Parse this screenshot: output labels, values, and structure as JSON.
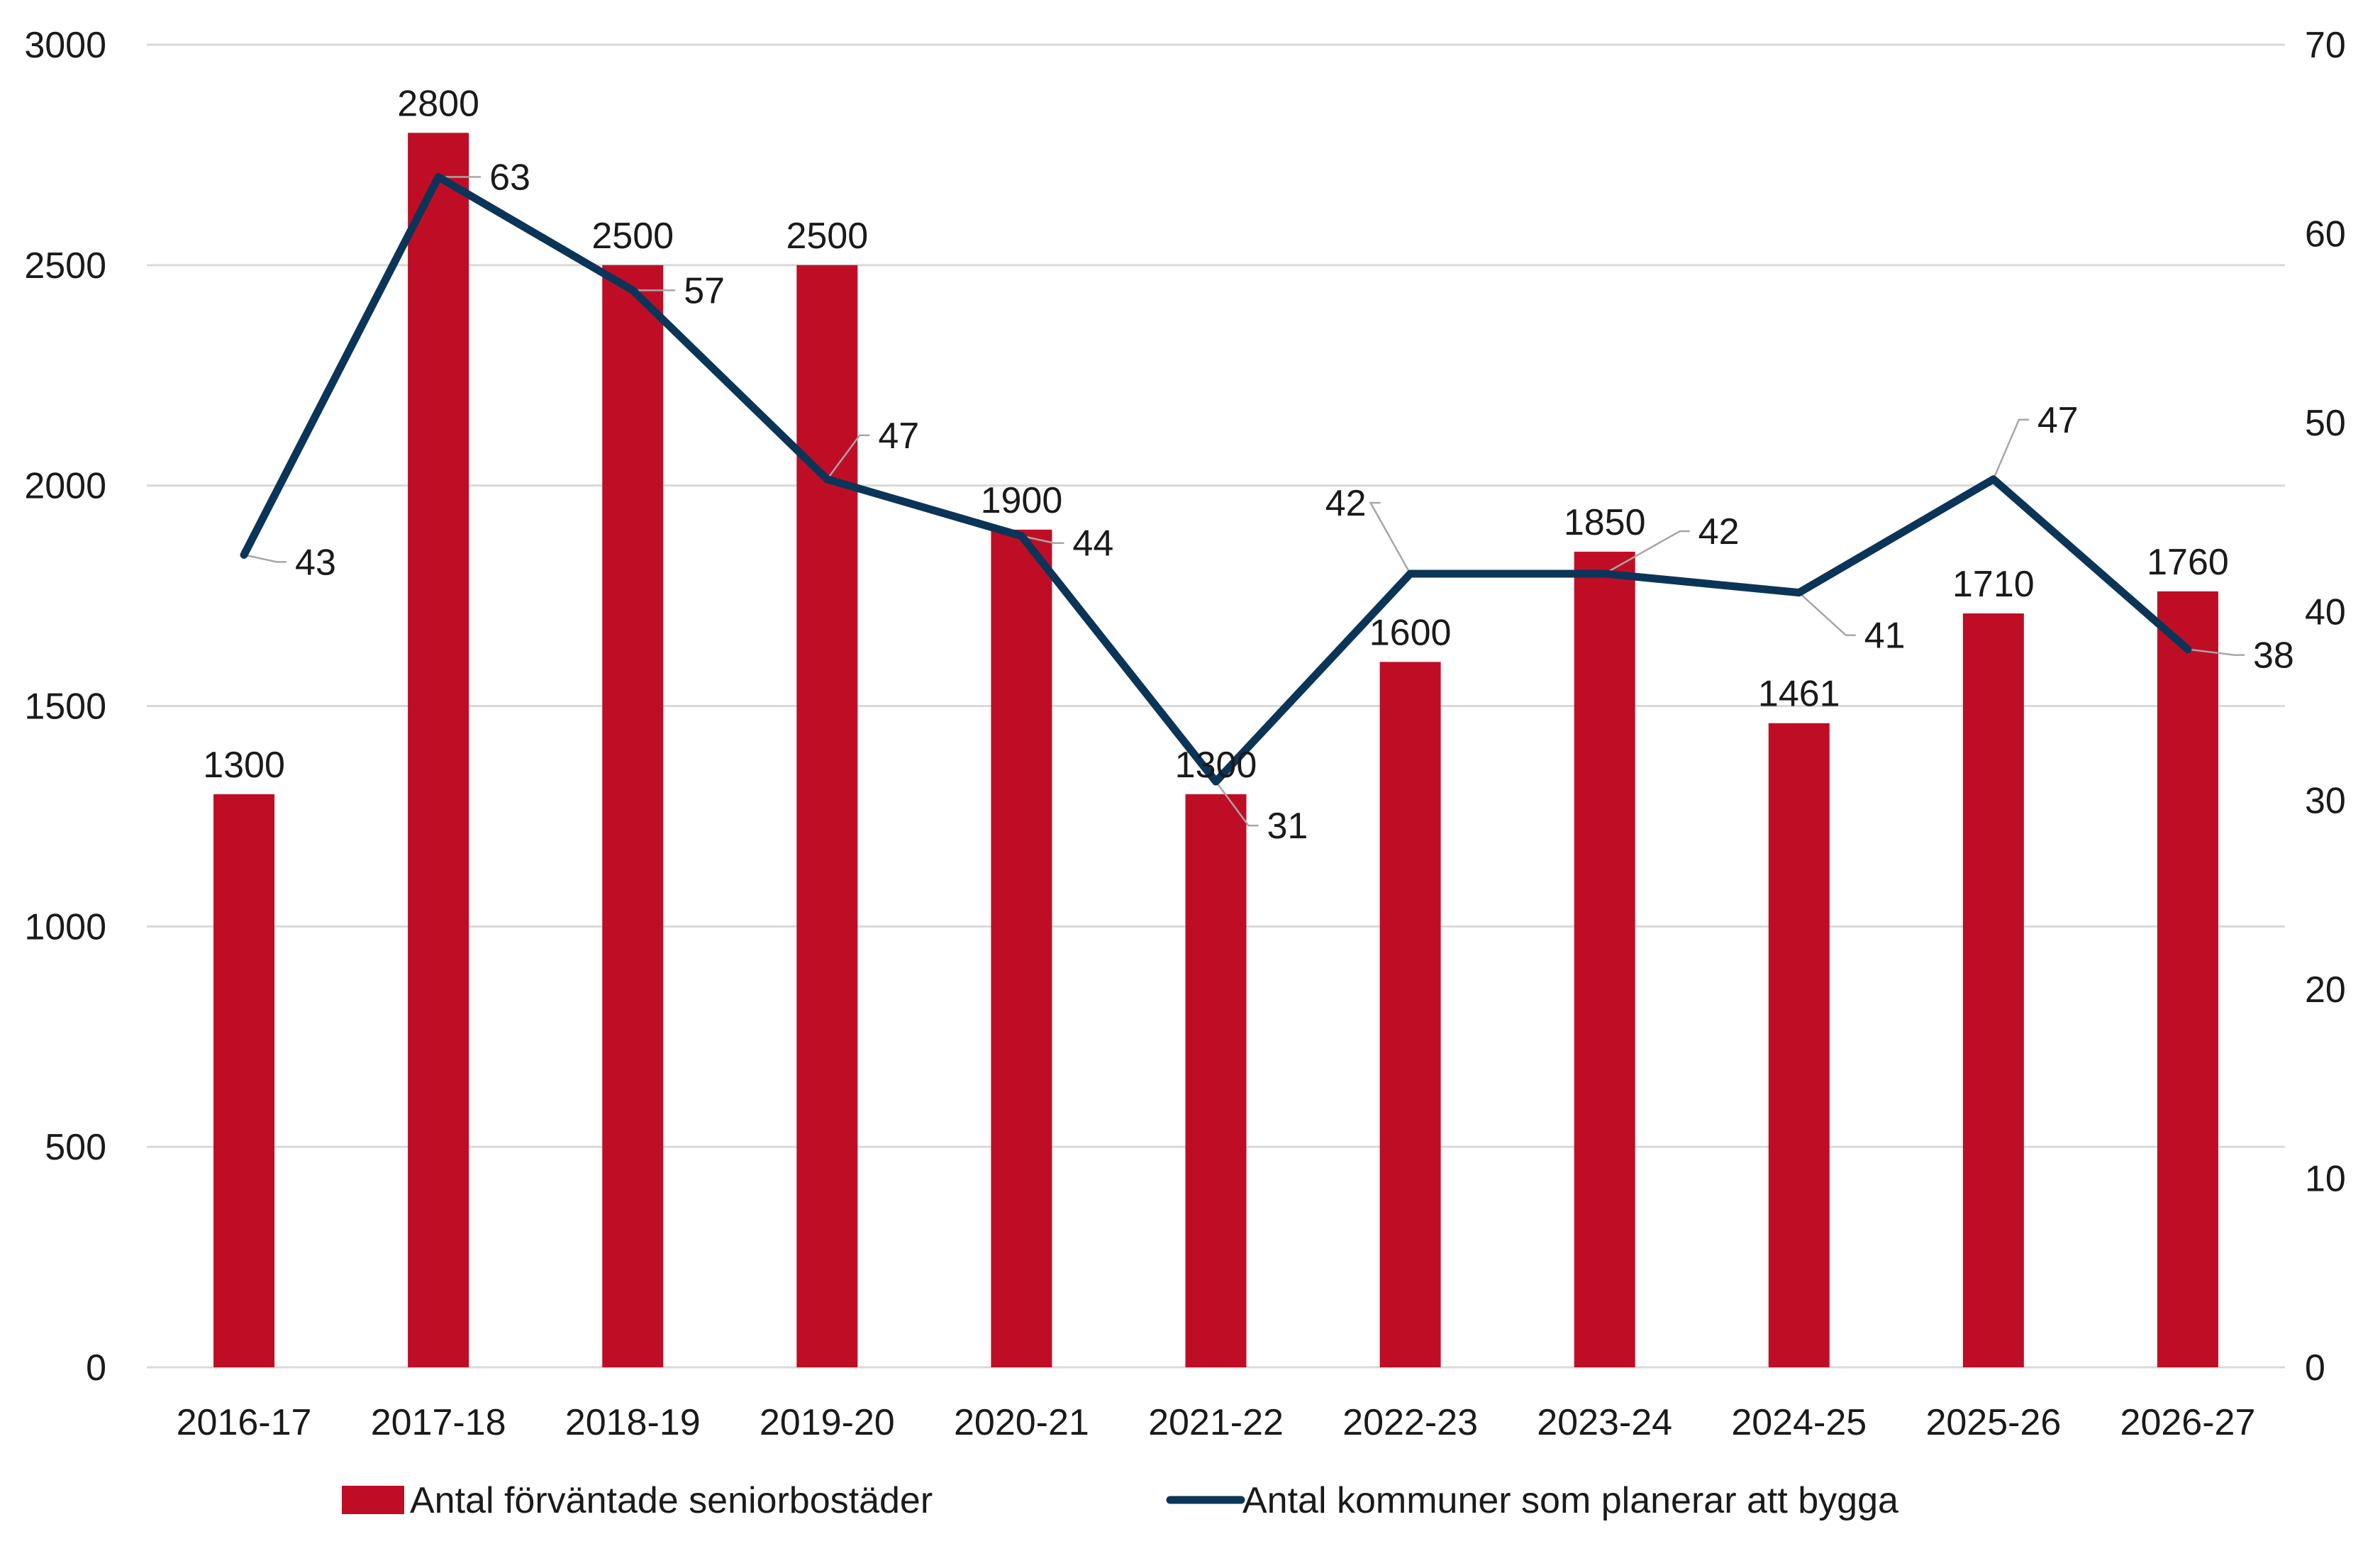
{
  "chart_data": {
    "type": "bar+line",
    "categories": [
      "2016-17",
      "2017-18",
      "2018-19",
      "2019-20",
      "2020-21",
      "2021-22",
      "2022-23",
      "2023-24",
      "2024-25",
      "2025-26",
      "2026-27"
    ],
    "series": [
      {
        "name": "Antal förväntade seniorbostäder",
        "type": "bar",
        "axis": "left",
        "color": "#c00d26",
        "values": [
          1300,
          2800,
          2500,
          2500,
          1900,
          1300,
          1600,
          1850,
          1461,
          1710,
          1760
        ]
      },
      {
        "name": "Antal kommuner som planerar att bygga",
        "type": "line",
        "axis": "right",
        "color": "#0b3558",
        "values": [
          43,
          63,
          57,
          47,
          44,
          31,
          42,
          42,
          41,
          47,
          38
        ]
      }
    ],
    "y_left": {
      "lim": [
        0,
        3000
      ],
      "ticks": [
        0,
        500,
        1000,
        1500,
        2000,
        2500,
        3000
      ]
    },
    "y_right": {
      "lim": [
        0,
        70
      ],
      "ticks": [
        0,
        10,
        20,
        30,
        40,
        50,
        60,
        70
      ]
    },
    "grid": true,
    "legend_position": "bottom",
    "gridColor": "#d9d9d9",
    "leaderColor": "#a6a6a6"
  }
}
